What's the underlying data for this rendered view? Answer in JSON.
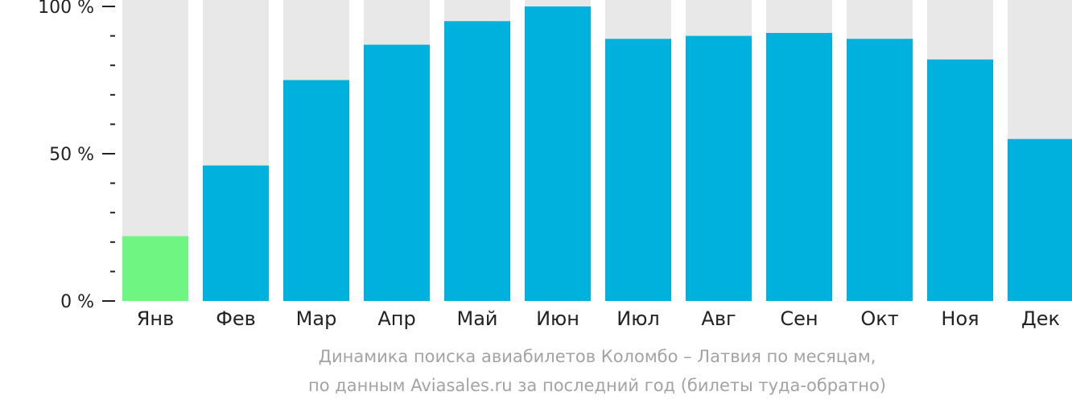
{
  "chart_data": {
    "type": "bar",
    "categories": [
      "Янв",
      "Фев",
      "Мар",
      "Апр",
      "Май",
      "Июн",
      "Июл",
      "Авг",
      "Сен",
      "Окт",
      "Ноя",
      "Дек"
    ],
    "values": [
      22,
      46,
      75,
      87,
      95,
      100,
      89,
      90,
      91,
      89,
      82,
      55
    ],
    "ylim": [
      0,
      100
    ],
    "yticks": [
      {
        "value": 100,
        "label": "100 %"
      },
      {
        "value": 50,
        "label": "50 %"
      },
      {
        "value": 0,
        "label": "0 %"
      }
    ],
    "minor_ticks": [
      10,
      20,
      30,
      40,
      60,
      70,
      80,
      90
    ],
    "highlight_index": 0,
    "colors": {
      "bar": "#00b0dd",
      "highlight": "#6ff582",
      "background_bar": "#e8e8e8",
      "axis": "#222222"
    }
  },
  "caption": {
    "line1": "Динамика поиска авиабилетов Коломбо – Латвия по месяцам,",
    "line2": "по данным Aviasales.ru за последний год (билеты туда-обратно)"
  }
}
